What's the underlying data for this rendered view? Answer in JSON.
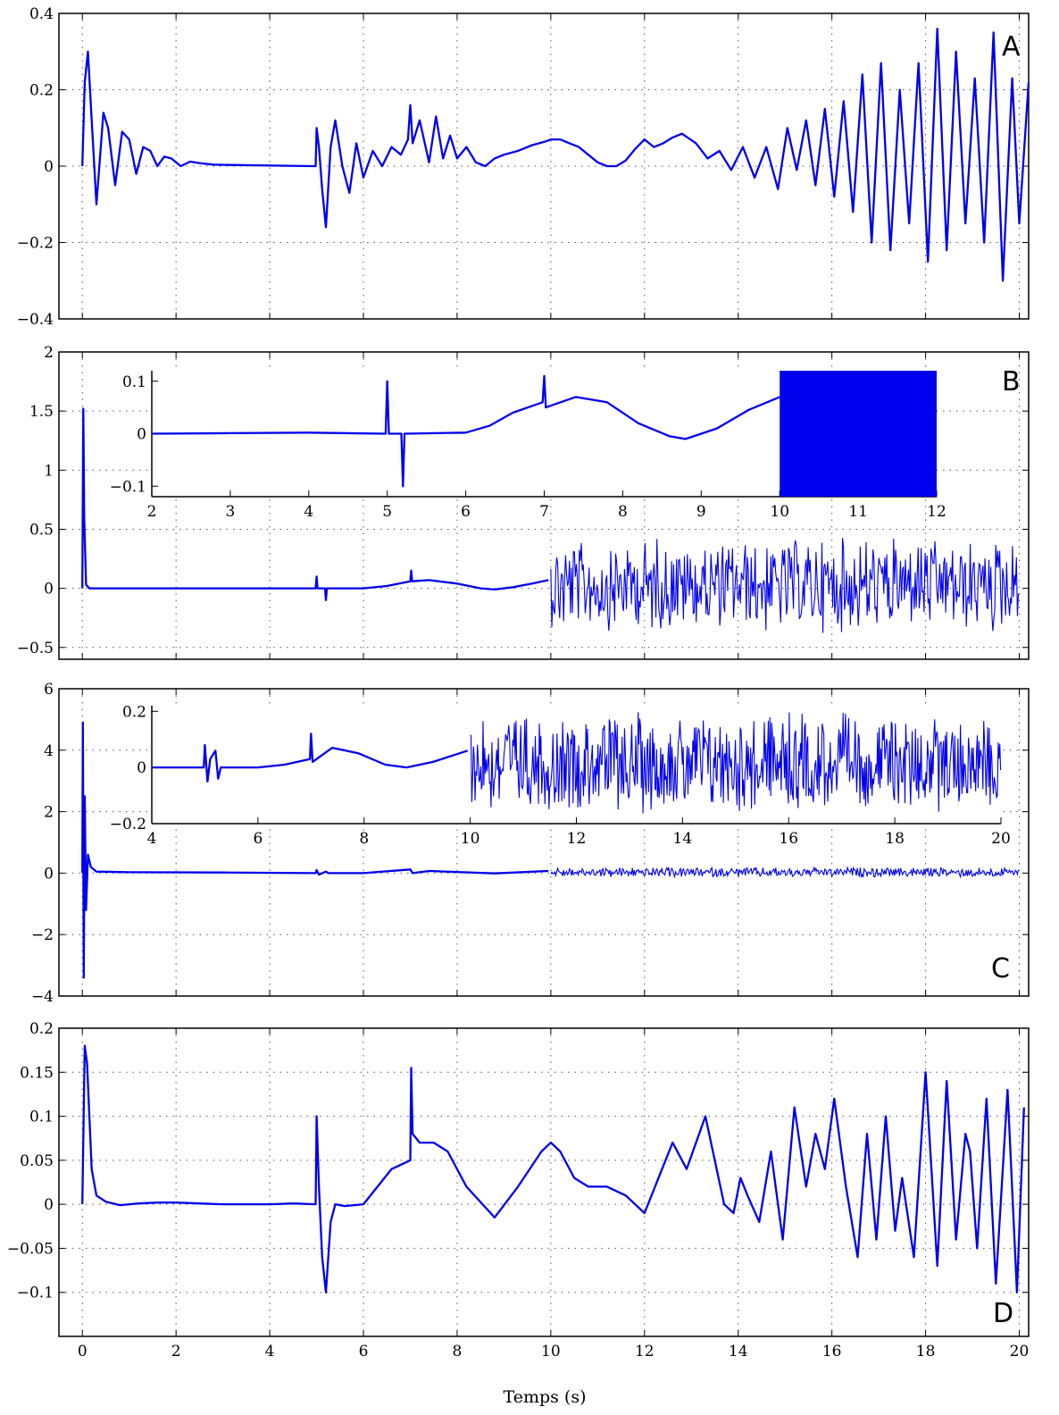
{
  "colors": {
    "trace": "#0000ee",
    "axes": "#000000",
    "grid": "#555555"
  },
  "chart_data": [
    {
      "type": "line",
      "panel": "A",
      "xlim": [
        -0.5,
        20.2
      ],
      "ylim": [
        -0.4,
        0.4
      ],
      "yticks": [
        "0.4",
        "0.2",
        "0",
        "−0.2",
        "−0.4"
      ],
      "ytick_values": [
        0.4,
        0.2,
        0,
        -0.2,
        -0.4
      ],
      "xticks": [
        0,
        2,
        4,
        6,
        8,
        10,
        12,
        14,
        16,
        18,
        20
      ],
      "grid": true,
      "x": [
        0,
        0.05,
        0.12,
        0.2,
        0.3,
        0.45,
        0.55,
        0.7,
        0.85,
        1.0,
        1.15,
        1.3,
        1.45,
        1.6,
        1.75,
        1.9,
        2.1,
        2.3,
        2.5,
        2.8,
        3.2,
        3.8,
        4.4,
        4.98,
        5.0,
        5.05,
        5.12,
        5.2,
        5.3,
        5.4,
        5.55,
        5.7,
        5.85,
        6.0,
        6.2,
        6.4,
        6.6,
        6.8,
        6.95,
        7.0,
        7.05,
        7.2,
        7.4,
        7.55,
        7.7,
        7.85,
        8.0,
        8.2,
        8.4,
        8.6,
        8.8,
        9.0,
        9.3,
        9.6,
        9.9,
        10.0,
        10.2,
        10.4,
        10.6,
        10.8,
        11.0,
        11.2,
        11.4,
        11.6,
        11.8,
        12.0,
        12.2,
        12.4,
        12.6,
        12.8,
        13.1,
        13.35,
        13.6,
        13.85,
        14.1,
        14.35,
        14.6,
        14.85,
        15.05,
        15.25,
        15.45,
        15.65,
        15.85,
        16.05,
        16.25,
        16.45,
        16.65,
        16.85,
        17.05,
        17.25,
        17.45,
        17.65,
        17.85,
        18.05,
        18.25,
        18.45,
        18.65,
        18.85,
        19.05,
        19.25,
        19.45,
        19.65,
        19.85,
        20.0,
        20.2
      ],
      "y": [
        0.0,
        0.22,
        0.3,
        0.12,
        -0.1,
        0.14,
        0.1,
        -0.05,
        0.09,
        0.07,
        -0.02,
        0.05,
        0.04,
        0.0,
        0.025,
        0.02,
        0.0,
        0.012,
        0.008,
        0.004,
        0.003,
        0.002,
        0.001,
        0.0,
        0.1,
        0.05,
        -0.06,
        -0.16,
        0.05,
        0.12,
        0.0,
        -0.07,
        0.06,
        -0.03,
        0.04,
        0.0,
        0.05,
        0.03,
        0.07,
        0.16,
        0.06,
        0.12,
        0.01,
        0.13,
        0.02,
        0.08,
        0.02,
        0.05,
        0.01,
        0.0,
        0.02,
        0.03,
        0.04,
        0.055,
        0.065,
        0.07,
        0.07,
        0.06,
        0.05,
        0.03,
        0.01,
        0.0,
        0.0,
        0.015,
        0.045,
        0.07,
        0.05,
        0.06,
        0.075,
        0.085,
        0.06,
        0.02,
        0.04,
        -0.01,
        0.05,
        -0.03,
        0.05,
        -0.06,
        0.1,
        -0.01,
        0.12,
        -0.05,
        0.15,
        -0.08,
        0.17,
        -0.12,
        0.24,
        -0.2,
        0.27,
        -0.22,
        0.2,
        -0.15,
        0.27,
        -0.25,
        0.36,
        -0.22,
        0.3,
        -0.15,
        0.23,
        -0.2,
        0.35,
        -0.3,
        0.23,
        -0.15,
        0.22
      ]
    },
    {
      "type": "line",
      "panel": "B",
      "xlim": [
        -0.5,
        20.2
      ],
      "ylim": [
        -0.6,
        2.0
      ],
      "yticks": [
        "2",
        "1.5",
        "1",
        "0.5",
        "0",
        "−0.5"
      ],
      "ytick_values": [
        2,
        1.5,
        1,
        0.5,
        0,
        -0.5
      ],
      "xticks": [
        0,
        2,
        4,
        6,
        8,
        10,
        12,
        14,
        16,
        18,
        20
      ],
      "grid": true,
      "x": [
        0,
        0.02,
        0.04,
        0.08,
        0.15,
        0.3,
        1,
        2,
        3,
        4,
        4.98,
        5.0,
        5.02,
        5.18,
        5.2,
        5.22,
        6.0,
        6.5,
        7.0,
        7.02,
        7.04,
        7.4,
        8.0,
        8.5,
        8.8,
        9.2,
        9.6,
        9.95
      ],
      "y": [
        0,
        1.52,
        0.6,
        0.03,
        0.0,
        0.0,
        0.0,
        0.0,
        0.0,
        0.0,
        0.0,
        0.1,
        0.0,
        0.0,
        -0.1,
        0.0,
        0.0,
        0.02,
        0.06,
        0.15,
        0.06,
        0.07,
        0.04,
        0.0,
        -0.01,
        0.01,
        0.04,
        0.07
      ],
      "noise": {
        "x_range": [
          10,
          20
        ],
        "band": [
          -0.4,
          0.45
        ]
      },
      "inset": {
        "xlim": [
          2,
          12
        ],
        "ylim": [
          -0.12,
          0.12
        ],
        "yticks": [
          "0.1",
          "0",
          "−0.1"
        ],
        "ytick_values": [
          0.1,
          0,
          -0.1
        ],
        "xticks": [
          2,
          3,
          4,
          5,
          6,
          7,
          8,
          9,
          10,
          11,
          12
        ],
        "x": [
          2,
          3,
          4,
          4.98,
          5.0,
          5.02,
          5.18,
          5.2,
          5.22,
          6.0,
          6.3,
          6.6,
          6.98,
          7.0,
          7.02,
          7.4,
          7.8,
          8.2,
          8.6,
          8.8,
          9.2,
          9.6,
          10.0
        ],
        "y": [
          0,
          0.001,
          0.002,
          0.0,
          0.1,
          0.0,
          0.0,
          -0.1,
          0.0,
          0.002,
          0.015,
          0.04,
          0.06,
          0.11,
          0.05,
          0.07,
          0.06,
          0.02,
          -0.005,
          -0.01,
          0.01,
          0.045,
          0.07
        ],
        "block": {
          "x_range": [
            10,
            12
          ],
          "y_range": [
            -0.12,
            0.12
          ]
        }
      }
    },
    {
      "type": "line",
      "panel": "C",
      "xlim": [
        -0.5,
        20.2
      ],
      "ylim": [
        -4,
        6
      ],
      "yticks": [
        "6",
        "4",
        "2",
        "0",
        "−2",
        "−4"
      ],
      "ytick_values": [
        6,
        4,
        2,
        0,
        -2,
        -4
      ],
      "xticks": [
        0,
        2,
        4,
        6,
        8,
        10,
        12,
        14,
        16,
        18,
        20
      ],
      "grid": true,
      "x": [
        0,
        0.01,
        0.03,
        0.05,
        0.08,
        0.12,
        0.18,
        0.3,
        1,
        3,
        4.98,
        5.0,
        5.05,
        5.2,
        5.25,
        6,
        7.0,
        7.05,
        7.4,
        8.8,
        9.95
      ],
      "y": [
        0,
        4.9,
        -3.4,
        2.5,
        -1.2,
        0.6,
        0.2,
        0.05,
        0.03,
        0.02,
        0.0,
        0.1,
        -0.05,
        0.05,
        0.0,
        0.0,
        0.12,
        0.0,
        0.07,
        -0.01,
        0.07
      ],
      "noise": {
        "x_range": [
          10,
          20
        ],
        "band": [
          -0.15,
          0.2
        ]
      },
      "inset": {
        "xlim": [
          4,
          20
        ],
        "ylim": [
          -0.2,
          0.22
        ],
        "yticks": [
          "0.2",
          "0",
          "−0.2"
        ],
        "ytick_values": [
          0.2,
          0,
          -0.2
        ],
        "xticks": [
          4,
          6,
          8,
          10,
          12,
          14,
          16,
          18,
          20
        ],
        "x": [
          4,
          4.98,
          5.0,
          5.05,
          5.1,
          5.2,
          5.25,
          5.3,
          6.0,
          6.5,
          6.98,
          7.0,
          7.03,
          7.4,
          7.9,
          8.4,
          8.8,
          9.3,
          9.95
        ],
        "y": [
          0,
          0.0,
          0.08,
          -0.05,
          0.03,
          0.06,
          -0.04,
          0.0,
          0.0,
          0.01,
          0.03,
          0.12,
          0.02,
          0.07,
          0.05,
          0.01,
          0.0,
          0.02,
          0.06
        ],
        "noise": {
          "x_range": [
            10,
            20
          ],
          "band": [
            -0.17,
            0.2
          ]
        }
      }
    },
    {
      "type": "line",
      "panel": "D",
      "xlim": [
        -0.5,
        20.2
      ],
      "ylim": [
        -0.15,
        0.2
      ],
      "yticks": [
        "0.2",
        "0.15",
        "0.1",
        "0.05",
        "0",
        "−0.05",
        "−0.1"
      ],
      "ytick_values": [
        0.2,
        0.15,
        0.1,
        0.05,
        0,
        -0.05,
        -0.1
      ],
      "xticks": [
        0,
        2,
        4,
        6,
        8,
        10,
        12,
        14,
        16,
        18,
        20
      ],
      "xlabel": "Temps (s)",
      "grid": true,
      "x": [
        0,
        0.05,
        0.1,
        0.2,
        0.3,
        0.5,
        0.8,
        1.2,
        1.6,
        2.0,
        2.5,
        3.0,
        3.5,
        4.0,
        4.5,
        4.98,
        5.0,
        5.05,
        5.12,
        5.2,
        5.3,
        5.4,
        5.6,
        6.0,
        6.3,
        6.6,
        7.0,
        7.02,
        7.05,
        7.2,
        7.5,
        7.8,
        8.2,
        8.8,
        9.3,
        9.8,
        10.0,
        10.2,
        10.5,
        10.8,
        11.2,
        11.6,
        12.0,
        12.3,
        12.6,
        12.9,
        13.3,
        13.7,
        13.9,
        14.05,
        14.2,
        14.45,
        14.7,
        14.95,
        15.2,
        15.45,
        15.65,
        15.85,
        16.05,
        16.3,
        16.55,
        16.75,
        16.95,
        17.15,
        17.35,
        17.5,
        17.75,
        18.0,
        18.25,
        18.45,
        18.65,
        18.85,
        18.95,
        19.1,
        19.3,
        19.5,
        19.75,
        19.95,
        20.1
      ],
      "y": [
        0,
        0.18,
        0.16,
        0.04,
        0.01,
        0.003,
        -0.001,
        0.001,
        0.002,
        0.002,
        0.001,
        0.0,
        0.0,
        0.0,
        0.001,
        0.0,
        0.1,
        0.02,
        -0.06,
        -0.1,
        -0.02,
        0.0,
        -0.002,
        0.0,
        0.02,
        0.04,
        0.05,
        0.155,
        0.08,
        0.07,
        0.07,
        0.06,
        0.02,
        -0.015,
        0.02,
        0.06,
        0.07,
        0.06,
        0.03,
        0.02,
        0.02,
        0.01,
        -0.01,
        0.03,
        0.07,
        0.04,
        0.1,
        0.0,
        -0.01,
        0.03,
        0.01,
        -0.02,
        0.06,
        -0.04,
        0.11,
        0.02,
        0.08,
        0.04,
        0.12,
        0.02,
        -0.06,
        0.08,
        -0.04,
        0.1,
        -0.03,
        0.03,
        -0.06,
        0.15,
        -0.07,
        0.14,
        -0.04,
        0.08,
        0.06,
        -0.05,
        0.12,
        -0.09,
        0.13,
        -0.1,
        0.11
      ]
    }
  ]
}
